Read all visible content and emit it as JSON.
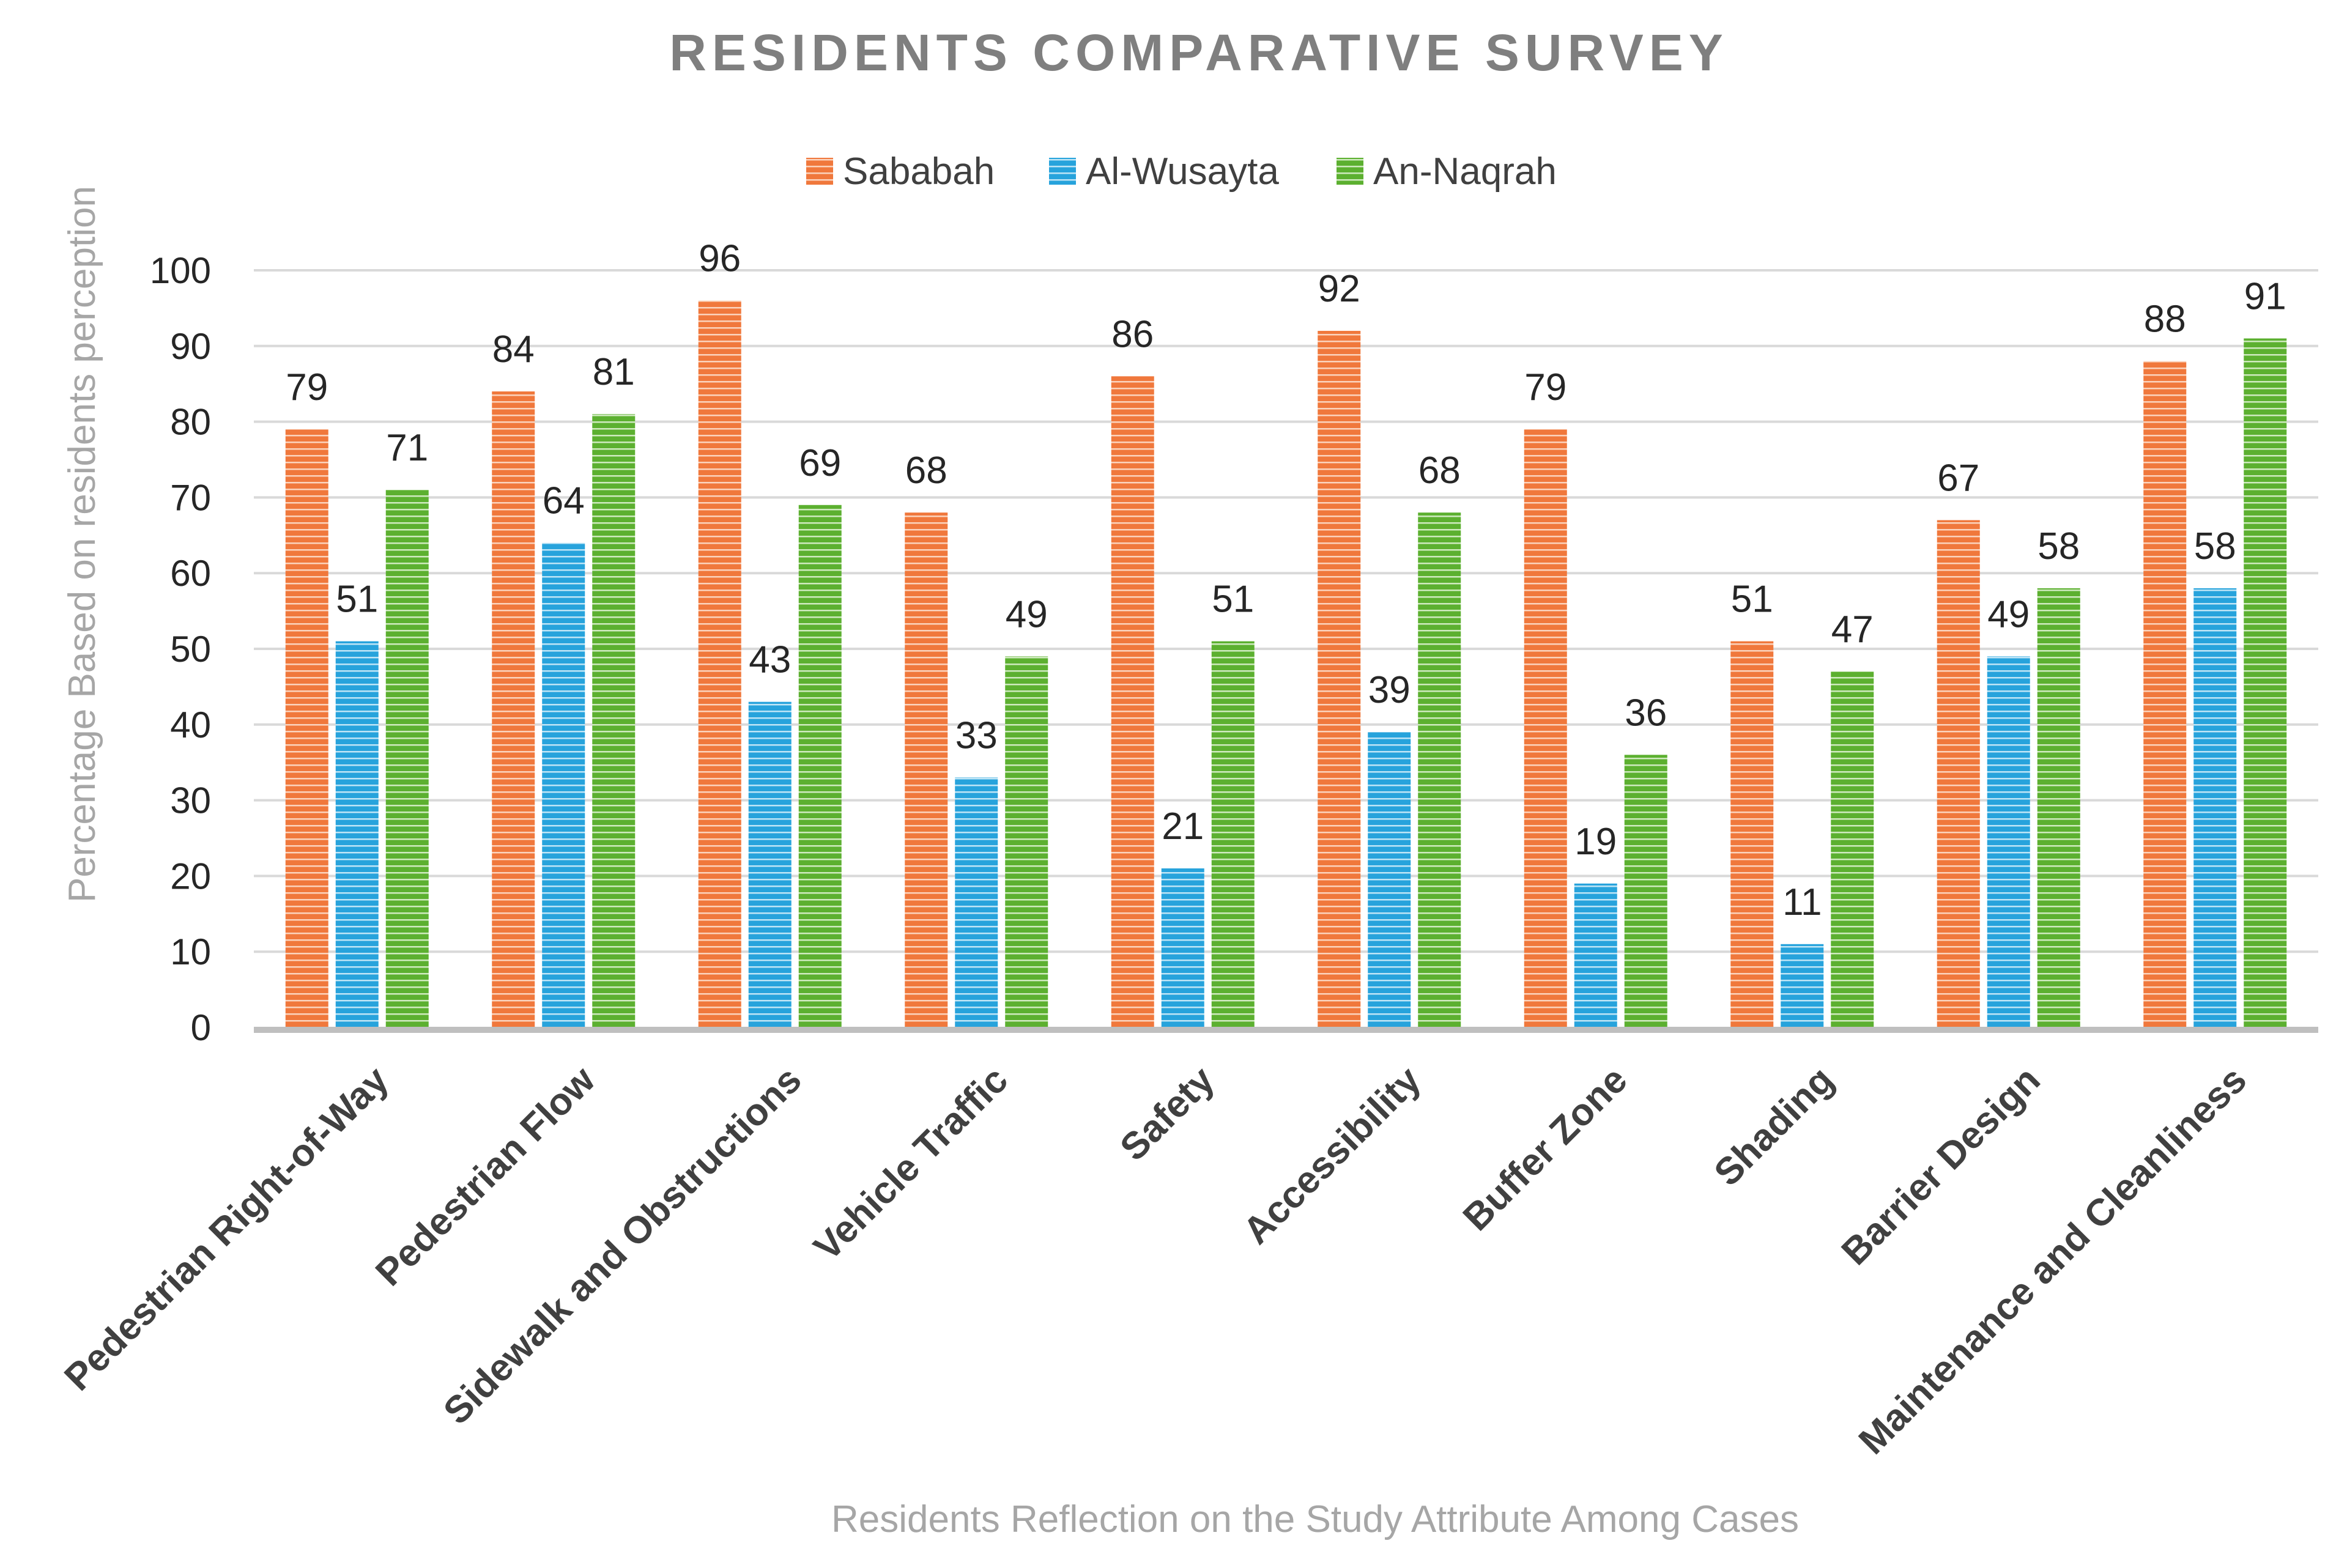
{
  "chart_data": {
    "type": "bar",
    "title": "RESIDENTS COMPARATIVE SURVEY",
    "xlabel": "Residents Reflection on the Study Attribute Among Cases",
    "ylabel": "Percentage Based on residents perception",
    "ylim": [
      0,
      100
    ],
    "yticks": [
      0,
      10,
      20,
      30,
      40,
      50,
      60,
      70,
      80,
      90,
      100
    ],
    "grid": true,
    "legend_position": "top-center",
    "categories": [
      "Pedestrian Right-of-Way",
      "Pedestrian Flow",
      "Sidewalk and Obstructions",
      "Vehicle Traffic",
      "Safety",
      "Accessibility",
      "Buffer Zone",
      "Shading",
      "Barrier Design",
      "Maintenance and Cleanliness"
    ],
    "series": [
      {
        "name": "Sababah",
        "color": "#f0783c",
        "stripe": "#fbd3bd",
        "values": [
          79,
          84,
          96,
          68,
          86,
          92,
          79,
          51,
          67,
          88
        ]
      },
      {
        "name": "Al-Wusayta",
        "color": "#27a3dc",
        "stripe": "#bfe5f6",
        "values": [
          51,
          64,
          43,
          33,
          21,
          39,
          19,
          11,
          49,
          58
        ]
      },
      {
        "name": "An-Naqrah",
        "color": "#5cb030",
        "stripe": "#cfeabf",
        "values": [
          71,
          81,
          69,
          49,
          51,
          68,
          36,
          47,
          58,
          91
        ]
      }
    ]
  }
}
